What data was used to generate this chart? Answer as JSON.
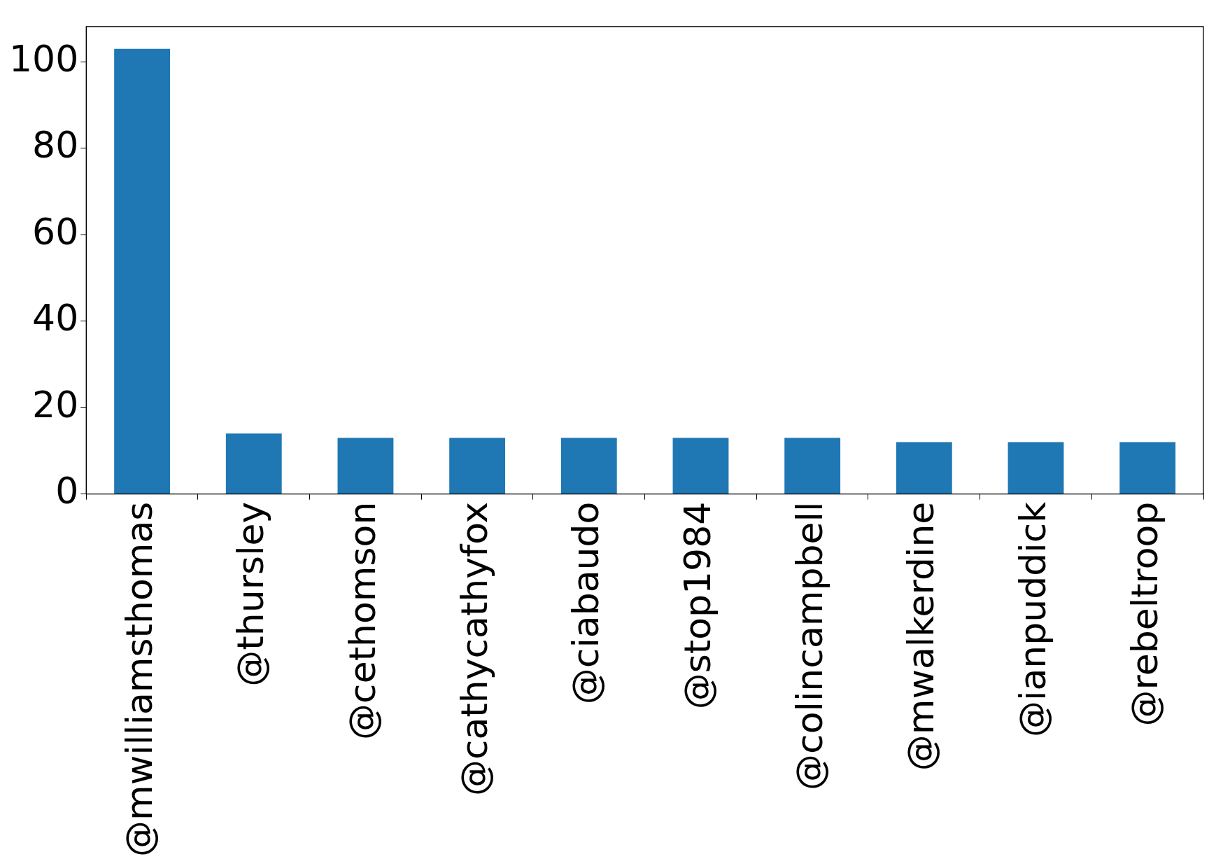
{
  "chart_data": {
    "type": "bar",
    "categories": [
      "@mwilliamsthomas",
      "@thursley",
      "@cethomson",
      "@cathycathyfox",
      "@ciabaudo",
      "@stop1984",
      "@colincampbell",
      "@mwalkerdine",
      "@ianpuddick",
      "@rebeltroop"
    ],
    "values": [
      103,
      14,
      13,
      13,
      13,
      13,
      13,
      12,
      12,
      12
    ],
    "color": "#1f77b4",
    "ylim": [
      0,
      108.15
    ],
    "yticks": [
      0,
      20,
      40,
      60,
      80,
      100
    ],
    "grid": false,
    "legend": false
  }
}
